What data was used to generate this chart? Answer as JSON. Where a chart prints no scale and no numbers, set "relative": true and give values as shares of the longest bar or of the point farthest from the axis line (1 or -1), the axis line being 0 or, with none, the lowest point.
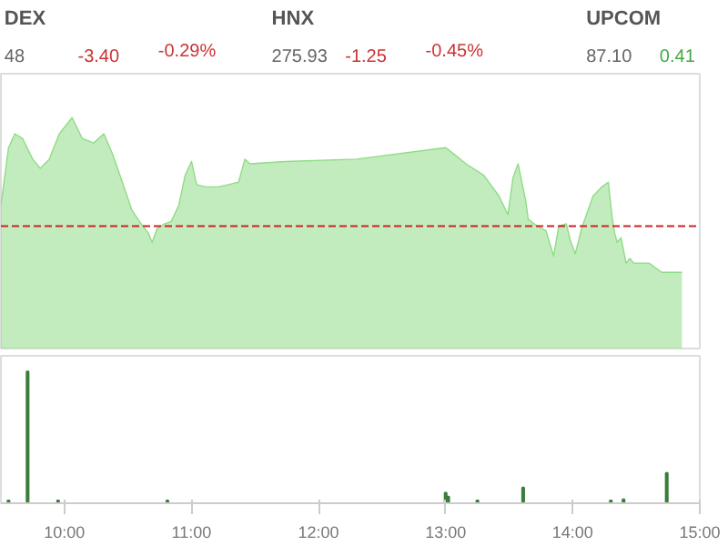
{
  "chart_data": [
    {
      "type": "other",
      "categories": [
        "DEX",
        "HNX",
        "UPCOM"
      ],
      "annotations": [
        "48",
        "-3.40",
        "-0.29%",
        "275.93",
        "-1.25",
        "-0.45%",
        "87.10",
        "0.41"
      ]
    },
    {
      "type": "area",
      "relative": true,
      "color": "#8fdc86",
      "xlim": [
        9.5,
        15
      ],
      "tick_labels": false,
      "x": [
        9.5,
        9.56,
        9.61,
        9.67,
        9.75,
        9.81,
        9.88,
        9.96,
        10.06,
        10.14,
        10.23,
        10.31,
        10.38,
        10.45,
        10.53,
        10.59,
        10.66,
        10.69,
        10.73,
        10.79,
        10.84,
        10.9,
        10.95,
        11.0,
        11.04,
        11.11,
        11.21,
        11.29,
        11.37,
        11.42,
        11.46,
        11.74,
        12.3,
        13.0,
        13.07,
        13.16,
        13.3,
        13.42,
        13.49,
        13.53,
        13.57,
        13.63,
        13.65,
        13.72,
        13.79,
        13.85,
        13.89,
        13.95,
        13.98,
        14.02,
        14.07,
        14.16,
        14.23,
        14.28,
        14.31,
        14.33,
        14.35,
        14.38,
        14.42,
        14.45,
        14.48,
        14.6,
        14.7,
        14.86
      ],
      "values": [
        0.62,
        0.87,
        0.93,
        0.91,
        0.82,
        0.78,
        0.82,
        0.93,
        1.0,
        0.91,
        0.89,
        0.93,
        0.84,
        0.73,
        0.6,
        0.55,
        0.5,
        0.46,
        0.52,
        0.54,
        0.55,
        0.62,
        0.75,
        0.81,
        0.71,
        0.7,
        0.7,
        0.71,
        0.72,
        0.82,
        0.8,
        0.81,
        0.82,
        0.87,
        0.84,
        0.8,
        0.75,
        0.66,
        0.58,
        0.74,
        0.8,
        0.64,
        0.56,
        0.53,
        0.51,
        0.4,
        0.53,
        0.54,
        0.47,
        0.41,
        0.52,
        0.66,
        0.7,
        0.72,
        0.57,
        0.5,
        0.46,
        0.48,
        0.37,
        0.39,
        0.37,
        0.37,
        0.33,
        0.33
      ],
      "ref_lines": [
        {
          "axis": "y",
          "value": 0.53,
          "color": "#cc2222",
          "line_style": "dashed"
        }
      ]
    },
    {
      "type": "bar",
      "relative": true,
      "color": "#3b7d3b",
      "xlim": [
        9.5,
        15
      ],
      "tick_labels": "x",
      "xticks": [
        {
          "value": 10,
          "label": "10:00"
        },
        {
          "value": 11,
          "label": "11:00"
        },
        {
          "value": 12,
          "label": "12:00"
        },
        {
          "value": 13,
          "label": "13:00"
        },
        {
          "value": 14,
          "label": "14:00"
        },
        {
          "value": 15,
          "label": "15:00"
        }
      ],
      "x": [
        9.56,
        9.71,
        9.95,
        10.81,
        13.0,
        13.02,
        13.25,
        13.61,
        14.3,
        14.4,
        14.74
      ],
      "values": [
        0.02,
        1.0,
        0.02,
        0.02,
        0.08,
        0.05,
        0.02,
        0.12,
        0.02,
        0.03,
        0.23
      ]
    }
  ]
}
